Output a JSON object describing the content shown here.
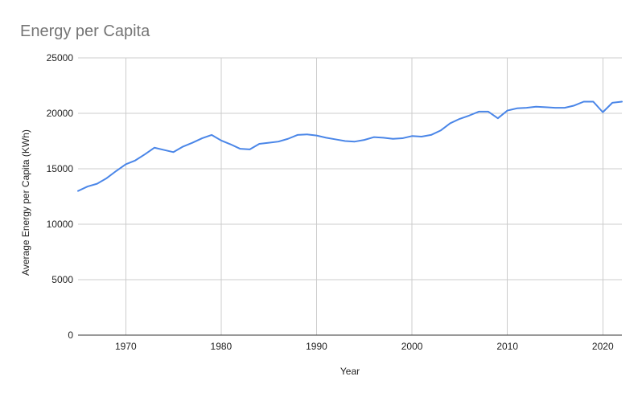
{
  "chart_data": {
    "type": "line",
    "title": "Energy per Capita",
    "xlabel": "Year",
    "ylabel": "Average Energy per Capita (KWh)",
    "xlim": [
      1965,
      2022
    ],
    "ylim": [
      0,
      25000
    ],
    "x_ticks": [
      1970,
      1980,
      1990,
      2000,
      2010,
      2020
    ],
    "y_ticks": [
      0,
      5000,
      10000,
      15000,
      20000,
      25000
    ],
    "grid": true,
    "legend": "none",
    "color": "#4a86e8",
    "series": [
      {
        "x": [
          1965,
          1966,
          1967,
          1968,
          1969,
          1970,
          1971,
          1972,
          1973,
          1974,
          1975,
          1976,
          1977,
          1978,
          1979,
          1980,
          1981,
          1982,
          1983,
          1984,
          1985,
          1986,
          1987,
          1988,
          1989,
          1990,
          1991,
          1992,
          1993,
          1994,
          1995,
          1996,
          1997,
          1998,
          1999,
          2000,
          2001,
          2002,
          2003,
          2004,
          2005,
          2006,
          2007,
          2008,
          2009,
          2010,
          2011,
          2012,
          2013,
          2014,
          2015,
          2016,
          2017,
          2018,
          2019,
          2020,
          2021,
          2022
        ],
        "values": [
          13000,
          13400,
          13650,
          14150,
          14800,
          15400,
          15750,
          16300,
          16900,
          16700,
          16500,
          17000,
          17350,
          17750,
          18050,
          17550,
          17200,
          16800,
          16750,
          17250,
          17350,
          17450,
          17700,
          18050,
          18100,
          18000,
          17800,
          17650,
          17500,
          17450,
          17600,
          17850,
          17800,
          17700,
          17750,
          17950,
          17900,
          18050,
          18450,
          19100,
          19500,
          19800,
          20150,
          20150,
          19550,
          20250,
          20450,
          20500,
          20600,
          20550,
          20500,
          20500,
          20700,
          21050,
          21050,
          20100,
          20950,
          21050
        ]
      }
    ]
  }
}
